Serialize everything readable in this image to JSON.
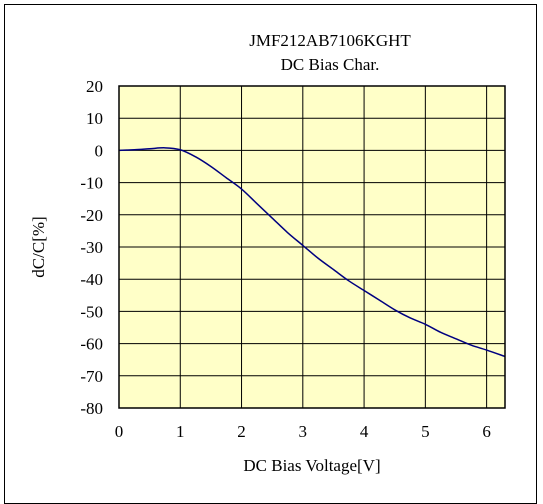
{
  "chart_data": {
    "type": "line",
    "title": "JMF212AB7106KGHT",
    "subtitle": "DC Bias Char.",
    "xlabel": "DC Bias Voltage[V]",
    "ylabel": "dC/C[%]",
    "xlim": [
      0,
      6.3
    ],
    "ylim": [
      -80,
      20
    ],
    "x_ticks": [
      0,
      1,
      2,
      3,
      4,
      5,
      6
    ],
    "y_ticks": [
      20,
      10,
      0,
      -10,
      -20,
      -30,
      -40,
      -50,
      -60,
      -70,
      -80
    ],
    "grid": true,
    "series": [
      {
        "color": "#000080",
        "x": [
          0,
          0.25,
          0.5,
          0.75,
          1.0,
          1.25,
          1.5,
          1.75,
          2.0,
          2.25,
          2.5,
          2.75,
          3.0,
          3.25,
          3.5,
          3.75,
          4.0,
          4.25,
          4.5,
          4.75,
          5.0,
          5.25,
          5.5,
          5.75,
          6.0,
          6.3
        ],
        "y": [
          0,
          0.2,
          0.5,
          0.8,
          0.2,
          -2,
          -5,
          -8.5,
          -12,
          -16.5,
          -21,
          -25.5,
          -29.5,
          -33.5,
          -37,
          -40.5,
          -43.5,
          -46.5,
          -49.5,
          -52,
          -54,
          -56.5,
          -58.5,
          -60.5,
          -62,
          -64
        ]
      }
    ]
  },
  "colors": {
    "plot_background": "#ffffc8",
    "grid": "#000000",
    "series": "#000080"
  }
}
